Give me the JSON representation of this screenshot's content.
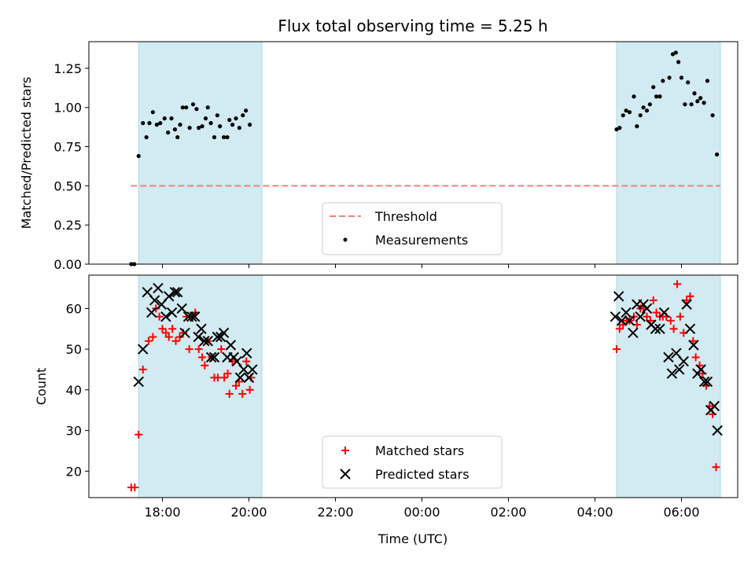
{
  "chart_data": {
    "type": "scatter",
    "title": "Flux total observing time = 5.25 h",
    "xlabel": "Time (UTC)",
    "x_unit": "hours since 17:00 UTC",
    "xlim": [
      -0.7,
      14.3
    ],
    "xticks": [
      {
        "x": 1,
        "label": "18:00"
      },
      {
        "x": 3,
        "label": "20:00"
      },
      {
        "x": 5,
        "label": "22:00"
      },
      {
        "x": 7,
        "label": "00:00"
      },
      {
        "x": 9,
        "label": "02:00"
      },
      {
        "x": 11,
        "label": "04:00"
      },
      {
        "x": 13,
        "label": "06:00"
      }
    ],
    "observing_windows": [
      [
        0.45,
        3.3
      ],
      [
        11.5,
        13.9
      ]
    ],
    "window_color": "#add8e6",
    "panels": [
      {
        "id": "ratio",
        "ylabel": "Matched/Predicted stars",
        "ylim": [
          0,
          1.42
        ],
        "yticks": [
          0,
          0.25,
          0.5,
          0.75,
          1.0,
          1.25
        ],
        "ytick_labels": [
          "0.00",
          "0.25",
          "0.50",
          "0.75",
          "1.00",
          "1.25"
        ],
        "threshold": {
          "name": "Threshold",
          "y": 0.5,
          "x_range": [
            0.27,
            13.9
          ],
          "color": "#f08080"
        },
        "legend": [
          "Threshold",
          "Measurements"
        ],
        "series": [
          {
            "name": "Measurements",
            "marker": "dot",
            "color": "#000000",
            "points": [
              [
                0.28,
                0.0
              ],
              [
                0.35,
                0.0
              ],
              [
                0.45,
                0.69
              ],
              [
                0.55,
                0.9
              ],
              [
                0.63,
                0.81
              ],
              [
                0.7,
                0.9
              ],
              [
                0.78,
                0.97
              ],
              [
                0.87,
                0.89
              ],
              [
                0.95,
                0.9
              ],
              [
                1.05,
                0.93
              ],
              [
                1.13,
                0.84
              ],
              [
                1.21,
                0.93
              ],
              [
                1.29,
                0.86
              ],
              [
                1.35,
                0.81
              ],
              [
                1.41,
                0.89
              ],
              [
                1.47,
                1.0
              ],
              [
                1.55,
                1.0
              ],
              [
                1.63,
                0.87
              ],
              [
                1.71,
                1.02
              ],
              [
                1.79,
                0.99
              ],
              [
                1.84,
                0.87
              ],
              [
                1.92,
                0.88
              ],
              [
                2.0,
                0.93
              ],
              [
                2.05,
                1.0
              ],
              [
                2.12,
                0.9
              ],
              [
                2.2,
                0.81
              ],
              [
                2.27,
                0.95
              ],
              [
                2.33,
                0.88
              ],
              [
                2.42,
                0.81
              ],
              [
                2.5,
                0.81
              ],
              [
                2.55,
                0.92
              ],
              [
                2.62,
                0.89
              ],
              [
                2.7,
                0.93
              ],
              [
                2.78,
                0.87
              ],
              [
                2.86,
                0.95
              ],
              [
                2.93,
                0.98
              ],
              [
                3.02,
                0.89
              ],
              [
                11.5,
                0.86
              ],
              [
                11.57,
                0.87
              ],
              [
                11.65,
                0.95
              ],
              [
                11.72,
                0.98
              ],
              [
                11.8,
                0.97
              ],
              [
                11.9,
                1.07
              ],
              [
                11.97,
                0.88
              ],
              [
                12.05,
                0.95
              ],
              [
                12.12,
                1.0
              ],
              [
                12.2,
                0.98
              ],
              [
                12.27,
                1.02
              ],
              [
                12.35,
                1.13
              ],
              [
                12.42,
                1.07
              ],
              [
                12.5,
                1.07
              ],
              [
                12.57,
                1.17
              ],
              [
                12.72,
                1.19
              ],
              [
                12.8,
                1.34
              ],
              [
                12.87,
                1.35
              ],
              [
                12.93,
                1.29
              ],
              [
                13.0,
                1.19
              ],
              [
                13.08,
                1.02
              ],
              [
                13.15,
                1.16
              ],
              [
                13.23,
                1.02
              ],
              [
                13.3,
                1.09
              ],
              [
                13.37,
                1.04
              ],
              [
                13.44,
                1.06
              ],
              [
                13.52,
                1.03
              ],
              [
                13.6,
                1.17
              ],
              [
                13.72,
                0.95
              ],
              [
                13.82,
                0.7
              ]
            ]
          }
        ]
      },
      {
        "id": "count",
        "ylabel": "Count",
        "ylim": [
          13.5,
          68.2
        ],
        "yticks": [
          20,
          30,
          40,
          50,
          60
        ],
        "ytick_labels": [
          "20",
          "30",
          "40",
          "50",
          "60"
        ],
        "legend": [
          "Matched stars",
          "Predicted stars"
        ],
        "series": [
          {
            "name": "Matched stars",
            "marker": "plus",
            "color": "#ff0000",
            "points": [
              [
                0.28,
                16
              ],
              [
                0.36,
                16
              ],
              [
                0.45,
                29
              ],
              [
                0.55,
                45
              ],
              [
                0.68,
                52
              ],
              [
                0.78,
                53
              ],
              [
                0.85,
                60
              ],
              [
                0.93,
                58
              ],
              [
                1.0,
                55
              ],
              [
                1.08,
                54
              ],
              [
                1.15,
                53
              ],
              [
                1.23,
                55
              ],
              [
                1.31,
                52
              ],
              [
                1.4,
                53
              ],
              [
                1.48,
                54
              ],
              [
                1.56,
                58
              ],
              [
                1.62,
                50
              ],
              [
                1.69,
                58
              ],
              [
                1.76,
                59
              ],
              [
                1.84,
                50
              ],
              [
                1.92,
                48
              ],
              [
                1.98,
                46
              ],
              [
                2.05,
                52
              ],
              [
                2.14,
                48
              ],
              [
                2.2,
                43
              ],
              [
                2.28,
                43
              ],
              [
                2.36,
                50
              ],
              [
                2.43,
                43
              ],
              [
                2.51,
                44
              ],
              [
                2.55,
                39
              ],
              [
                2.62,
                47
              ],
              [
                2.7,
                41
              ],
              [
                2.77,
                42
              ],
              [
                2.85,
                39
              ],
              [
                2.94,
                47
              ],
              [
                3.02,
                40
              ],
              [
                3.05,
                43
              ],
              [
                11.5,
                50
              ],
              [
                11.57,
                55
              ],
              [
                11.65,
                56
              ],
              [
                11.73,
                57
              ],
              [
                11.8,
                57
              ],
              [
                11.9,
                58
              ],
              [
                11.97,
                56
              ],
              [
                12.05,
                60
              ],
              [
                12.12,
                60
              ],
              [
                12.2,
                58
              ],
              [
                12.28,
                57
              ],
              [
                12.35,
                62
              ],
              [
                12.42,
                59
              ],
              [
                12.5,
                58
              ],
              [
                12.57,
                58
              ],
              [
                12.65,
                58
              ],
              [
                12.75,
                57
              ],
              [
                12.82,
                55
              ],
              [
                12.9,
                66
              ],
              [
                12.97,
                58
              ],
              [
                13.05,
                54
              ],
              [
                13.12,
                62
              ],
              [
                13.2,
                63
              ],
              [
                13.27,
                52
              ],
              [
                13.33,
                48
              ],
              [
                13.42,
                46
              ],
              [
                13.49,
                44
              ],
              [
                13.57,
                41
              ],
              [
                13.65,
                36
              ],
              [
                13.72,
                34
              ],
              [
                13.8,
                21
              ]
            ]
          },
          {
            "name": "Predicted stars",
            "marker": "x",
            "color": "#000000",
            "points": [
              [
                0.45,
                42
              ],
              [
                0.55,
                50
              ],
              [
                0.65,
                64
              ],
              [
                0.75,
                59
              ],
              [
                0.82,
                62
              ],
              [
                0.9,
                65
              ],
              [
                0.98,
                61
              ],
              [
                1.08,
                58
              ],
              [
                1.15,
                63
              ],
              [
                1.22,
                59
              ],
              [
                1.29,
                64
              ],
              [
                1.35,
                64
              ],
              [
                1.45,
                60
              ],
              [
                1.52,
                54
              ],
              [
                1.6,
                58
              ],
              [
                1.68,
                58
              ],
              [
                1.75,
                58
              ],
              [
                1.83,
                53
              ],
              [
                1.9,
                55
              ],
              [
                1.97,
                52
              ],
              [
                2.05,
                52
              ],
              [
                2.13,
                48
              ],
              [
                2.2,
                48
              ],
              [
                2.27,
                53
              ],
              [
                2.35,
                53
              ],
              [
                2.42,
                54
              ],
              [
                2.5,
                48
              ],
              [
                2.58,
                51
              ],
              [
                2.65,
                48
              ],
              [
                2.72,
                47
              ],
              [
                2.8,
                43
              ],
              [
                2.88,
                45
              ],
              [
                2.95,
                49
              ],
              [
                3.0,
                43
              ],
              [
                3.08,
                45
              ],
              [
                11.47,
                58
              ],
              [
                11.55,
                63
              ],
              [
                11.62,
                57
              ],
              [
                11.72,
                59
              ],
              [
                11.8,
                57
              ],
              [
                11.88,
                54
              ],
              [
                11.97,
                61
              ],
              [
                12.05,
                58
              ],
              [
                12.12,
                61
              ],
              [
                12.2,
                60
              ],
              [
                12.3,
                56
              ],
              [
                12.4,
                55
              ],
              [
                12.5,
                55
              ],
              [
                12.6,
                59
              ],
              [
                12.7,
                48
              ],
              [
                12.78,
                44
              ],
              [
                12.88,
                49
              ],
              [
                12.95,
                45
              ],
              [
                13.05,
                47
              ],
              [
                13.12,
                61
              ],
              [
                13.2,
                55
              ],
              [
                13.28,
                51
              ],
              [
                13.37,
                44
              ],
              [
                13.45,
                45
              ],
              [
                13.53,
                42
              ],
              [
                13.6,
                42
              ],
              [
                13.68,
                35
              ],
              [
                13.76,
                36
              ],
              [
                13.83,
                30
              ]
            ]
          }
        ]
      }
    ]
  }
}
